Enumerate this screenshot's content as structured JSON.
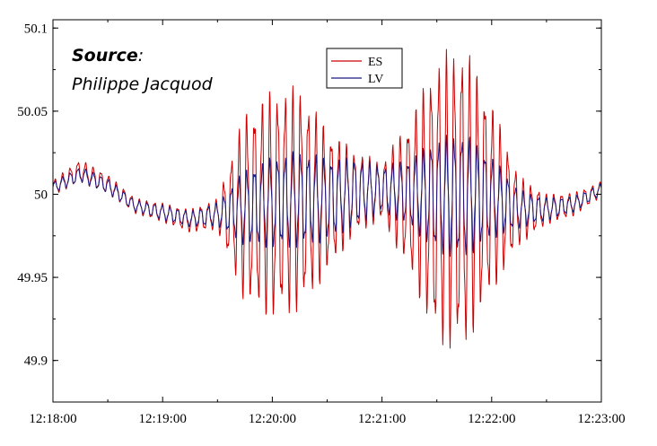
{
  "chart_data": {
    "type": "line",
    "title": "",
    "xlabel": "",
    "ylabel": "",
    "xlim": [
      "12:18:00",
      "12:23:00"
    ],
    "ylim": [
      49.875,
      50.105
    ],
    "x_ticks": [
      "12:18:00",
      "12:19:00",
      "12:20:00",
      "12:21:00",
      "12:22:00",
      "12:23:00"
    ],
    "y_ticks": [
      "49.9",
      "49.95",
      "50",
      "50.05",
      "50.1"
    ],
    "y_tick_values": [
      49.9,
      49.95,
      50,
      50.05,
      50.1
    ],
    "grid": false,
    "legend": {
      "placement": "top-center"
    },
    "annotation": {
      "title": "Source",
      "colon": ":",
      "author": "Philippe Jacquod"
    },
    "series": [
      {
        "name": "ES",
        "color": "#cc0000",
        "oscillation_period_s": 4.2,
        "x": [
          "12:18:00",
          "12:18:15",
          "12:18:30",
          "12:18:45",
          "12:19:00",
          "12:19:15",
          "12:19:30",
          "12:19:45",
          "12:20:00",
          "12:20:15",
          "12:20:30",
          "12:20:45",
          "12:21:00",
          "12:21:15",
          "12:21:30",
          "12:21:45",
          "12:22:00",
          "12:22:15",
          "12:22:30",
          "12:22:45",
          "12:23:00"
        ],
        "mean": [
          50.004,
          50.014,
          50.006,
          49.993,
          49.989,
          49.984,
          49.988,
          49.992,
          49.994,
          49.997,
          49.996,
          50.001,
          50.002,
          49.999,
          49.996,
          49.998,
          49.998,
          49.99,
          49.991,
          49.994,
          50.003
        ],
        "amplitude": [
          0.004,
          0.006,
          0.005,
          0.004,
          0.005,
          0.006,
          0.008,
          0.05,
          0.06,
          0.058,
          0.038,
          0.022,
          0.015,
          0.04,
          0.075,
          0.08,
          0.05,
          0.018,
          0.008,
          0.006,
          0.004
        ]
      },
      {
        "name": "LV",
        "color": "#1a1a80",
        "oscillation_period_s": 4.2,
        "x": [
          "12:18:00",
          "12:18:15",
          "12:18:30",
          "12:18:45",
          "12:19:00",
          "12:19:15",
          "12:19:30",
          "12:19:45",
          "12:20:00",
          "12:20:15",
          "12:20:30",
          "12:20:45",
          "12:21:00",
          "12:21:15",
          "12:21:30",
          "12:21:45",
          "12:22:00",
          "12:22:15",
          "12:22:30",
          "12:22:45",
          "12:23:00"
        ],
        "mean": [
          50.004,
          50.012,
          50.005,
          49.993,
          49.989,
          49.985,
          49.988,
          49.992,
          49.995,
          49.997,
          49.997,
          50.001,
          50.003,
          50.001,
          49.999,
          49.999,
          49.998,
          49.991,
          49.991,
          49.994,
          50.003
        ],
        "amplitude": [
          0.003,
          0.004,
          0.004,
          0.003,
          0.004,
          0.004,
          0.006,
          0.02,
          0.024,
          0.025,
          0.022,
          0.018,
          0.012,
          0.018,
          0.03,
          0.033,
          0.022,
          0.01,
          0.006,
          0.004,
          0.003
        ]
      }
    ]
  }
}
